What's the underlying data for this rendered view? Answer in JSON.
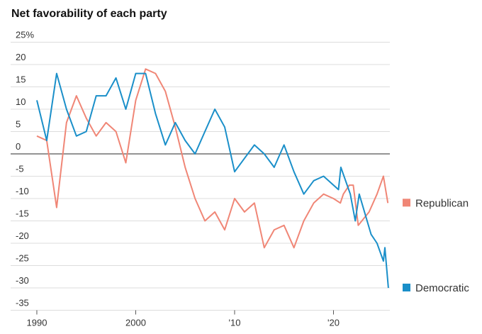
{
  "chart_data": {
    "type": "line",
    "title": "Net favorability of each party",
    "xlim": [
      1987.35,
      2025.7
    ],
    "xticks": [
      1990,
      2000,
      {
        "value": 2010,
        "label": "'10"
      },
      {
        "value": 2020,
        "label": "'20"
      }
    ],
    "ylim": [
      -35,
      25
    ],
    "yticks": [
      {
        "value": 25,
        "label": "25%"
      },
      20,
      15,
      10,
      5,
      0,
      -5,
      -10,
      -15,
      -20,
      -25,
      -30,
      -35
    ],
    "grid": true,
    "series": [
      {
        "name": "Republican",
        "color": "#f08676",
        "x": [
          1990,
          1991,
          1992,
          1993,
          1994,
          1995,
          1996,
          1997,
          1998,
          1999,
          2000,
          2001,
          2002,
          2003,
          2004,
          2005,
          2006,
          2007,
          2008,
          2009,
          2010,
          2011,
          2012,
          2013,
          2014,
          2015,
          2016,
          2017,
          2018,
          2019,
          2020,
          2020.7,
          2021,
          2021.6,
          2022,
          2022.5,
          2023.6,
          2024.4,
          2025.05,
          2025.5
        ],
        "values": [
          4,
          3,
          -12,
          7,
          13,
          8,
          4,
          7,
          5,
          -2,
          12,
          19,
          18,
          14,
          6,
          -3,
          -10,
          -15,
          -13,
          -17,
          -10,
          -13,
          -11,
          -21,
          -17,
          -16,
          -21,
          -15,
          -11,
          -9,
          -10,
          -11,
          -9,
          -7,
          -7,
          -16,
          -13,
          -9,
          -5,
          -11
        ]
      },
      {
        "name": "Democratic",
        "color": "#1a8fc9",
        "x": [
          1990,
          1991,
          1992,
          1993,
          1994,
          1995,
          1996,
          1997,
          1998,
          1999,
          2000,
          2001,
          2002,
          2003,
          2004,
          2005,
          2006,
          2007,
          2008,
          2009,
          2010,
          2011,
          2012,
          2013,
          2014,
          2015,
          2016,
          2017,
          2018,
          2019,
          2020.5,
          2020.75,
          2021.7,
          2022.2,
          2022.6,
          2023.8,
          2024.4,
          2025.05,
          2025.2,
          2025.55
        ],
        "values": [
          12,
          3,
          18,
          10,
          4,
          5,
          13,
          13,
          17,
          10,
          18,
          18,
          9,
          2,
          7,
          3,
          0,
          5,
          10,
          6,
          -4,
          -1,
          2,
          0,
          -3,
          2,
          -4,
          -9,
          -6,
          -5,
          -8,
          -3,
          -9,
          -15,
          -9,
          -18,
          -20,
          -24,
          -21,
          -30
        ]
      }
    ]
  }
}
